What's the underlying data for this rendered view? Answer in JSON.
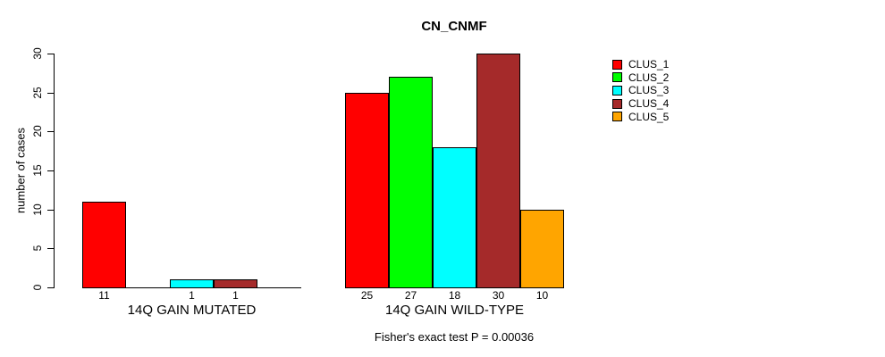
{
  "title": "CN_CNMF",
  "y_axis": {
    "label": "number of cases",
    "ticks": [
      0,
      5,
      10,
      15,
      20,
      25,
      30
    ]
  },
  "footer": "Fisher's exact test P = 0.00036",
  "legend": {
    "position": "right",
    "items": [
      {
        "label": "CLUS_1",
        "color": "#FF0000"
      },
      {
        "label": "CLUS_2",
        "color": "#00FF00"
      },
      {
        "label": "CLUS_3",
        "color": "#00FFFF"
      },
      {
        "label": "CLUS_4",
        "color": "#A52A2A"
      },
      {
        "label": "CLUS_5",
        "color": "#FFA500"
      }
    ]
  },
  "chart_data": {
    "type": "bar",
    "title": "CN_CNMF",
    "ylabel": "number of cases",
    "ylim": [
      0,
      30
    ],
    "yticks": [
      0,
      5,
      10,
      15,
      20,
      25,
      30
    ],
    "grid": false,
    "legend_position": "right",
    "categories": [
      "14Q GAIN MUTATED",
      "14Q GAIN WILD-TYPE"
    ],
    "series": [
      {
        "name": "CLUS_1",
        "color": "#FF0000",
        "values": [
          11,
          25
        ]
      },
      {
        "name": "CLUS_2",
        "color": "#00FF00",
        "values": [
          0,
          27
        ]
      },
      {
        "name": "CLUS_3",
        "color": "#00FFFF",
        "values": [
          1,
          18
        ]
      },
      {
        "name": "CLUS_4",
        "color": "#A52A2A",
        "values": [
          1,
          30
        ]
      },
      {
        "name": "CLUS_5",
        "color": "#FFA500",
        "values": [
          0,
          10
        ]
      }
    ],
    "value_labels_shown_for_zero_bars": false,
    "annotation": "Fisher's exact test P = 0.00036"
  }
}
